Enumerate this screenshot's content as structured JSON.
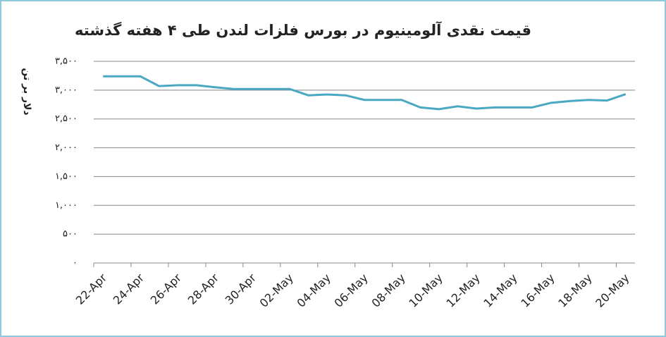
{
  "chart_data": {
    "type": "line",
    "title": "قیمت نقدی آلومینیوم در بورس فلزات لندن طی ۴ هفته گذشته",
    "y_label": "دلار بر تن",
    "categories": [
      "22-Apr",
      null,
      "24-Apr",
      null,
      "26-Apr",
      null,
      "28-Apr",
      null,
      "30-Apr",
      null,
      "02-May",
      null,
      "04-May",
      null,
      "06-May",
      null,
      "08-May",
      null,
      "10-May",
      null,
      "12-May",
      null,
      "14-May",
      null,
      "16-May",
      null,
      "18-May",
      null,
      "20-May"
    ],
    "series": [
      {
        "name": "Aluminium",
        "color": "#4aa8c2",
        "values": [
          3240,
          3240,
          3240,
          3070,
          3085,
          3085,
          3050,
          3020,
          3020,
          3020,
          3020,
          2910,
          2925,
          2910,
          2830,
          2830,
          2830,
          2700,
          2670,
          2720,
          2680,
          2700,
          2700,
          2700,
          2780,
          2810,
          2830,
          2820,
          2930
        ]
      }
    ],
    "ylim": [
      0,
      3500
    ],
    "yticks": [
      {
        "value": 0,
        "label": "۰"
      },
      {
        "value": 500,
        "label": "۵۰۰"
      },
      {
        "value": 1000,
        "label": "۱,۰۰۰"
      },
      {
        "value": 1500,
        "label": "۱,۵۰۰"
      },
      {
        "value": 2000,
        "label": "۲,۰۰۰"
      },
      {
        "value": 2500,
        "label": "۲,۵۰۰"
      },
      {
        "value": 3000,
        "label": "۳,۰۰۰"
      },
      {
        "value": 3500,
        "label": "۳,۵۰۰"
      }
    ],
    "grid": true
  }
}
